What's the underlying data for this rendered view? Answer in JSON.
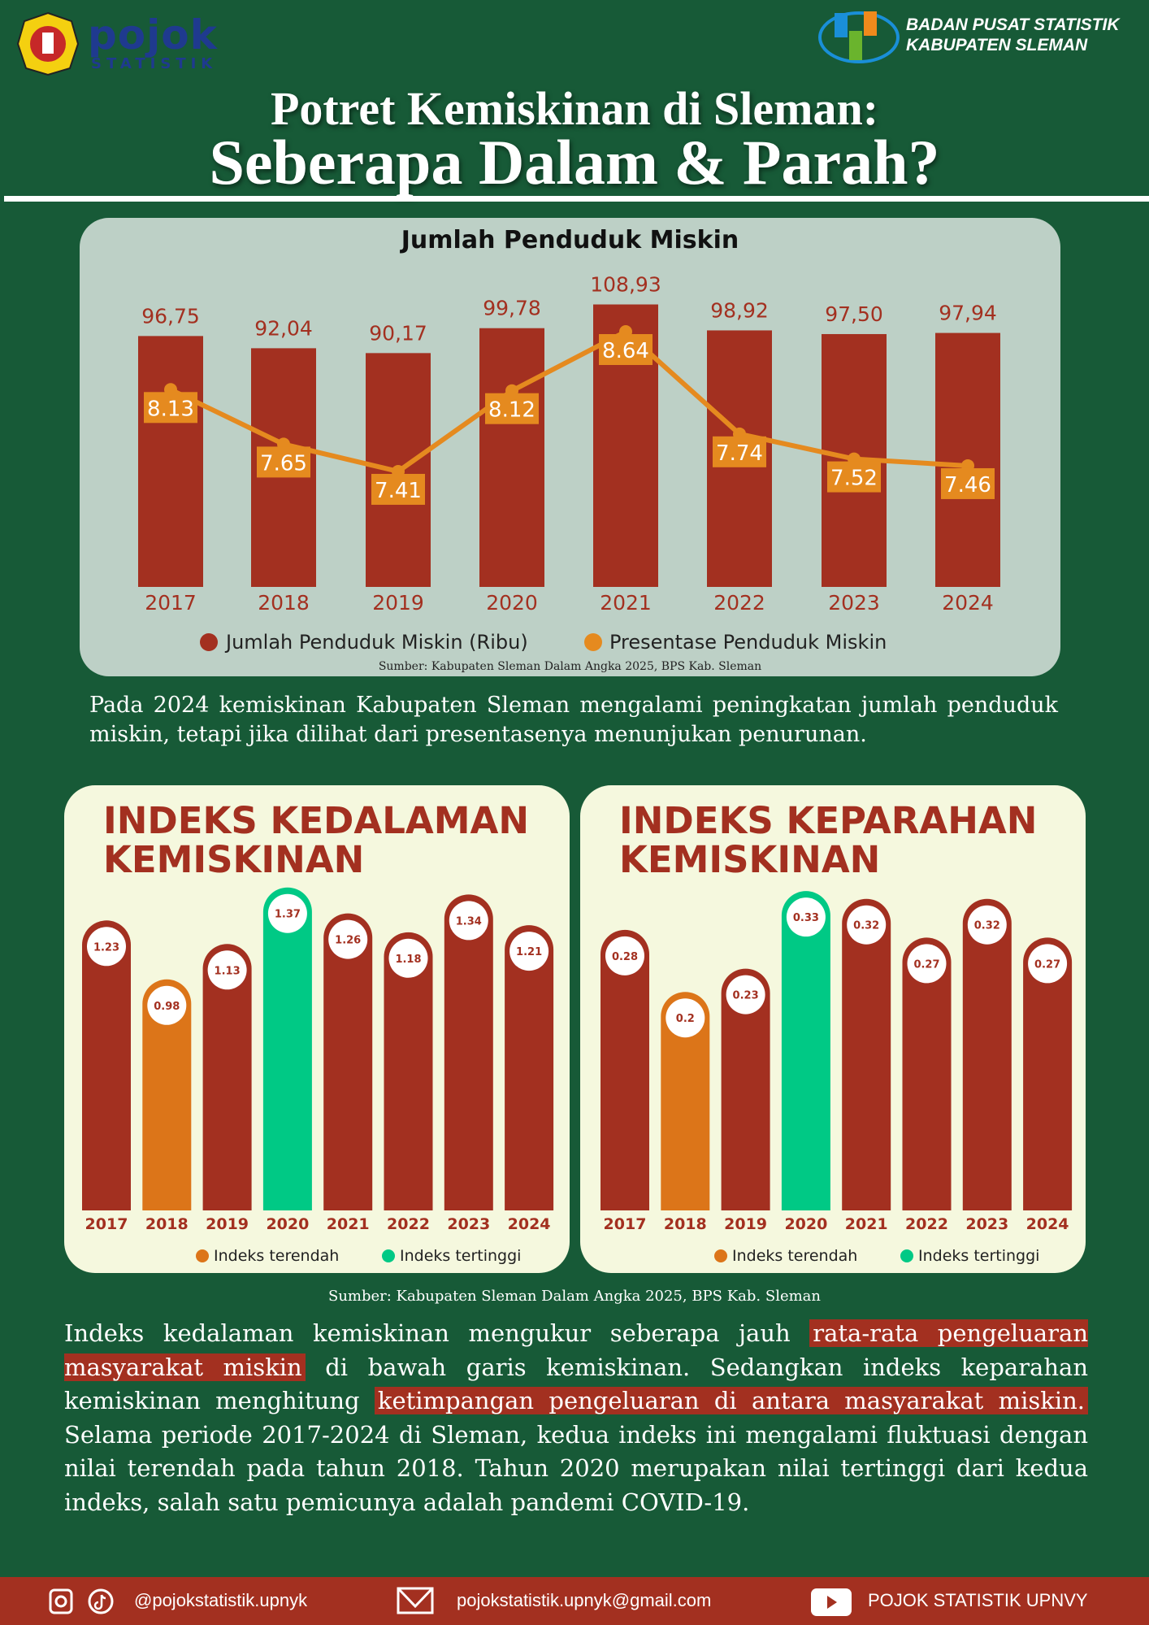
{
  "header": {
    "pojok_word": "pojok",
    "pojok_sub": "STATISTIK",
    "bps_line1": "BADAN PUSAT STATISTIK",
    "bps_line2": "KABUPATEN SLEMAN",
    "title_line1": "Potret Kemiskinan di Sleman:",
    "title_line2": "Seberapa Dalam & Parah?"
  },
  "chart_data": [
    {
      "type": "bar+line",
      "title": "Jumlah Penduduk Miskin",
      "categories": [
        "2017",
        "2018",
        "2019",
        "2020",
        "2021",
        "2022",
        "2023",
        "2024"
      ],
      "series": [
        {
          "name": "Jumlah Penduduk Miskin (Ribu)",
          "type": "bar",
          "values": [
            96.75,
            92.04,
            90.17,
            99.78,
            108.93,
            98.92,
            97.5,
            97.94
          ],
          "labels": [
            "96,75",
            "92,04",
            "90,17",
            "99,78",
            "108,93",
            "98,92",
            "97,50",
            "97,94"
          ],
          "color": "#a33020"
        },
        {
          "name": "Presentase Penduduk Miskin",
          "type": "line",
          "values": [
            8.13,
            7.65,
            7.41,
            8.12,
            8.64,
            7.74,
            7.52,
            7.46
          ],
          "labels": [
            "8.13",
            "7.65",
            "7.41",
            "8.12",
            "8.64",
            "7.74",
            "7.52",
            "7.46"
          ],
          "color": "#e58a1f"
        }
      ],
      "legend": "bottom",
      "source": "Sumber: Kabupaten Sleman Dalam Angka 2025, BPS Kab. Sleman"
    },
    {
      "type": "bar",
      "title": "INDEKS KEDALAMAN KEMISKINAN",
      "categories": [
        "2017",
        "2018",
        "2019",
        "2020",
        "2021",
        "2022",
        "2023",
        "2024"
      ],
      "values": [
        1.23,
        0.98,
        1.13,
        1.37,
        1.26,
        1.18,
        1.34,
        1.21
      ],
      "labels": [
        "1.23",
        "0.98",
        "1.13",
        "1.37",
        "1.26",
        "1.18",
        "1.34",
        "1.21"
      ],
      "lowest_index": 1,
      "highest_index": 3
    },
    {
      "type": "bar",
      "title": "INDEKS KEPARAHAN KEMISKINAN",
      "categories": [
        "2017",
        "2018",
        "2019",
        "2020",
        "2021",
        "2022",
        "2023",
        "2024"
      ],
      "values": [
        0.28,
        0.2,
        0.23,
        0.33,
        0.32,
        0.27,
        0.32,
        0.27
      ],
      "labels": [
        "0.28",
        "0.2",
        "0.23",
        "0.33",
        "0.32",
        "0.27",
        "0.32",
        "0.27"
      ],
      "lowest_index": 1,
      "highest_index": 3
    }
  ],
  "index_legend": {
    "low": "Indeks terendah",
    "high": "Indeks tertinggi"
  },
  "colors": {
    "background": "#175a37",
    "bar": "#a33020",
    "low": "#dc7519",
    "high": "#00c985",
    "line": "#e58a1f"
  },
  "source2": "Sumber: Kabupaten Sleman Dalam Angka 2025, BPS Kab. Sleman",
  "para1": "Pada 2024 kemiskinan Kabupaten Sleman mengalami peningkatan jumlah penduduk miskin, tetapi jika dilihat dari presentasenya menunjukan penurunan.",
  "para2": {
    "t1": "Indeks kedalaman kemiskinan mengukur seberapa jauh ",
    "h1": "rata-rata pengeluaran masyarakat miskin",
    "t2": " di bawah garis kemiskinan. Sedangkan indeks keparahan kemiskinan menghitung ",
    "h2": "ketimpangan pengeluaran di antara masyarakat miskin.",
    "t3": " Selama periode 2017-2024 di Sleman, kedua indeks ini mengalami fluktuasi dengan nilai terendah pada tahun 2018. Tahun 2020 merupakan nilai tertinggi dari kedua indeks, salah satu pemicunya adalah pandemi COVID-19."
  },
  "footer": {
    "social": "@pojokstatistik.upnyk",
    "email": "pojokstatistik.upnyk@gmail.com",
    "youtube": "POJOK STATISTIK UPNVY",
    "icons": [
      "instagram-icon",
      "tiktok-icon",
      "mail-icon",
      "youtube-icon"
    ]
  }
}
